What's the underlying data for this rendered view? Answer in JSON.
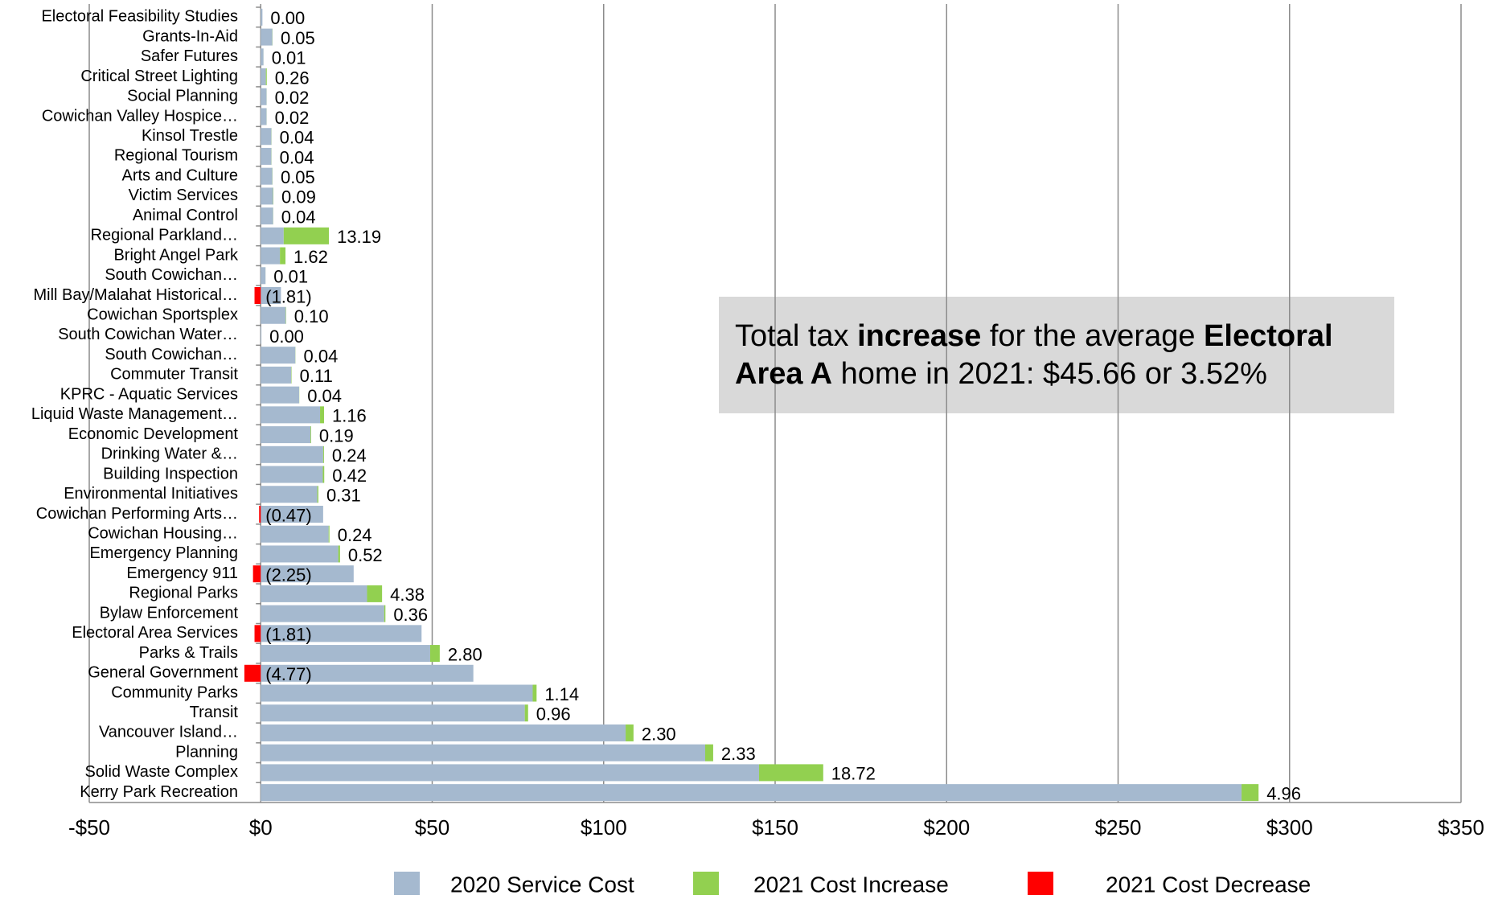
{
  "chart_data": {
    "type": "stacked_barh",
    "categories": [
      "Electoral Feasibility Studies",
      "Grants-In-Aid",
      "Safer Futures",
      "Critical Street Lighting",
      "Social Planning",
      "Cowichan Valley Hospice…",
      "Kinsol Trestle",
      "Regional Tourism",
      "Arts and Culture",
      "Victim Services",
      "Animal Control",
      "Regional Parkland…",
      "Bright Angel Park",
      "South Cowichan…",
      "Mill Bay/Malahat Historical…",
      "Cowichan Sportsplex",
      "South Cowichan Water…",
      "South Cowichan…",
      "Commuter Transit",
      "KPRC - Aquatic Services",
      "Liquid Waste Management…",
      "Economic Development",
      "Drinking Water &…",
      "Building Inspection",
      "Environmental Initiatives",
      "Cowichan Performing Arts…",
      "Cowichan Housing…",
      "Emergency Planning",
      "Emergency 911",
      "Regional Parks",
      "Bylaw Enforcement",
      "Electoral Area Services",
      "Parks & Trails",
      "General Government",
      "Community Parks",
      "Transit",
      "Vancouver Island…",
      "Planning",
      "Solid Waste Complex",
      "Kerry Park Recreation"
    ],
    "series": [
      {
        "name": "2020 Service Cost",
        "color": "#a5b9cf",
        "values": [
          0.5,
          3.4,
          0.8,
          1.5,
          1.7,
          1.7,
          3.1,
          3.1,
          3.4,
          3.6,
          3.6,
          6.7,
          5.6,
          1.4,
          5.9,
          7.3,
          0.2,
          10.1,
          8.9,
          11.2,
          17.3,
          14.5,
          18.2,
          18.1,
          16.5,
          18.2,
          19.8,
          22.6,
          27.1,
          31,
          36,
          46.9,
          49.4,
          62,
          79.3,
          77,
          106.4,
          129.6,
          145.3,
          286
        ]
      },
      {
        "name": "2021 Cost Increase",
        "color": "#92d050",
        "values": [
          0,
          0.05,
          0.01,
          0.26,
          0.02,
          0.02,
          0.04,
          0.04,
          0.05,
          0.09,
          0.04,
          13.19,
          1.62,
          0.01,
          null,
          0.1,
          0,
          0.04,
          0.11,
          0.04,
          1.16,
          0.19,
          0.24,
          0.42,
          0.31,
          null,
          0.24,
          0.52,
          null,
          4.38,
          0.36,
          null,
          2.8,
          null,
          1.14,
          0.96,
          2.3,
          2.33,
          18.72,
          4.96
        ],
        "value_labels": [
          "0.00",
          "0.05",
          "0.01",
          "0.26",
          "0.02",
          "0.02",
          "0.04",
          "0.04",
          "0.05",
          "0.09",
          "0.04",
          "13.19",
          "1.62",
          "0.01",
          null,
          "0.10",
          "0.00",
          "0.04",
          "0.11",
          "0.04",
          "1.16",
          "0.19",
          "0.24",
          "0.42",
          "0.31",
          null,
          "0.24",
          "0.52",
          null,
          "4.38",
          "0.36",
          null,
          "2.80",
          null,
          "1.14",
          "0.96",
          "2.30",
          "2.33",
          "18.72",
          "4.96"
        ]
      },
      {
        "name": "2021 Cost Decrease",
        "color": "#ff0000",
        "values": [
          null,
          null,
          null,
          null,
          null,
          null,
          null,
          null,
          null,
          null,
          null,
          null,
          null,
          null,
          -1.81,
          null,
          null,
          null,
          null,
          null,
          null,
          null,
          null,
          null,
          null,
          -0.47,
          null,
          null,
          -2.25,
          null,
          null,
          -1.81,
          null,
          -4.77,
          null,
          null,
          null,
          null,
          null,
          null
        ],
        "value_labels": [
          null,
          null,
          null,
          null,
          null,
          null,
          null,
          null,
          null,
          null,
          null,
          null,
          null,
          null,
          "(1.81)",
          null,
          null,
          null,
          null,
          null,
          null,
          null,
          null,
          null,
          null,
          "(0.47)",
          null,
          null,
          "(2.25)",
          null,
          null,
          "(1.81)",
          null,
          "(4.77)",
          null,
          null,
          null,
          null,
          null,
          null
        ]
      }
    ],
    "xlim": [
      -50,
      350
    ],
    "xticks": [
      {
        "value": -50,
        "label": "-$50"
      },
      {
        "value": 0,
        "label": "$0"
      },
      {
        "value": 50,
        "label": "$50"
      },
      {
        "value": 100,
        "label": "$100"
      },
      {
        "value": 150,
        "label": "$150"
      },
      {
        "value": 200,
        "label": "$200"
      },
      {
        "value": 250,
        "label": "$250"
      },
      {
        "value": 300,
        "label": "$300"
      },
      {
        "value": 350,
        "label": "$350"
      }
    ],
    "grid": true,
    "legend": "bottom",
    "annotation": [
      [
        {
          "text": "Total tax ",
          "bold": false
        },
        {
          "text": "increase",
          "bold": true
        },
        {
          "text": " for the average ",
          "bold": false
        },
        {
          "text": "Electoral",
          "bold": true
        }
      ],
      [
        {
          "text": "Area A",
          "bold": true
        },
        {
          "text": " home in 2021: $45.66 or 3.52%",
          "bold": false
        }
      ]
    ]
  }
}
